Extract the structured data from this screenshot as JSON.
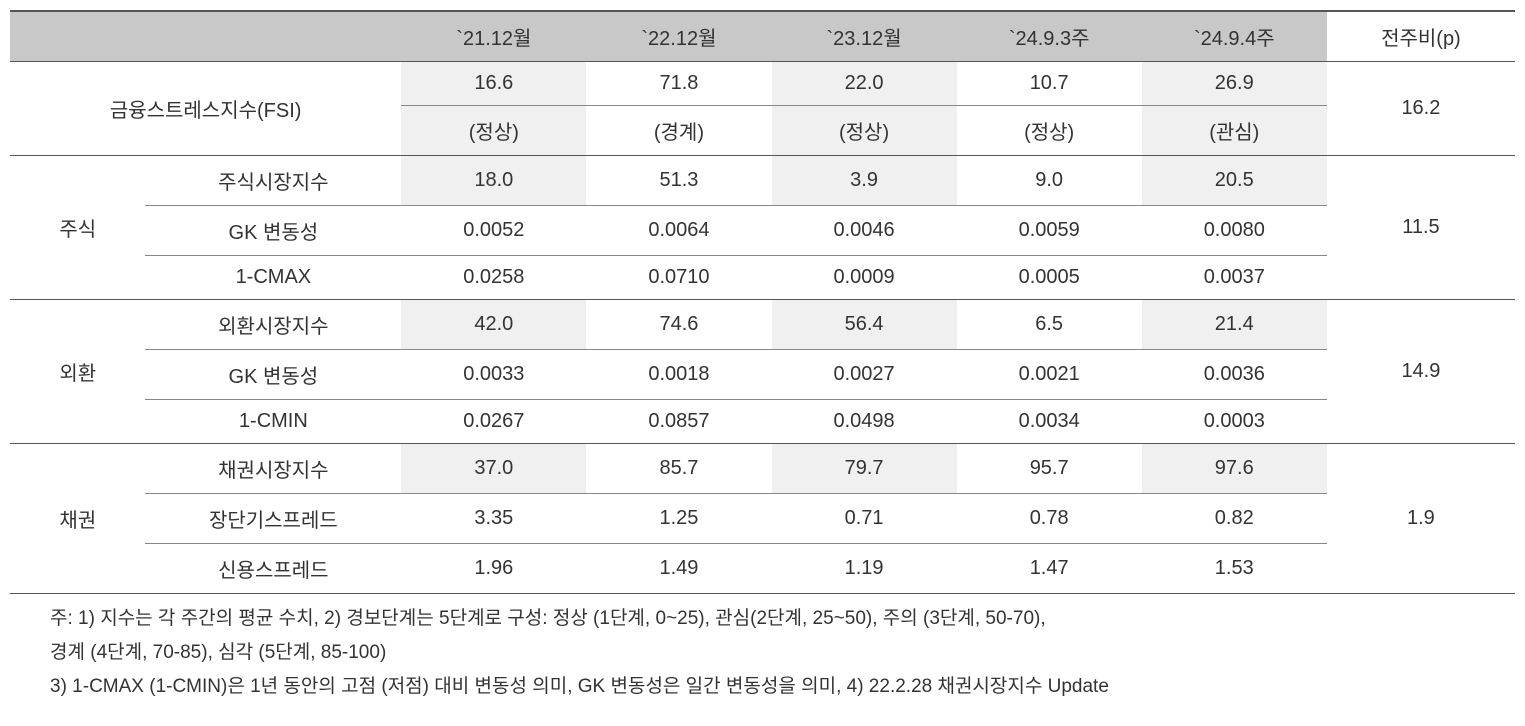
{
  "headers": {
    "blank": "",
    "c1": "`21.12월",
    "c2": "`22.12월",
    "c3": "`23.12월",
    "c4": "`24.9.3주",
    "c5": "`24.9.4주",
    "c6": "전주비(p)"
  },
  "fsi": {
    "label": "금융스트레스지수(FSI)",
    "v1": "16.6",
    "v2": "71.8",
    "v3": "22.0",
    "v4": "10.7",
    "v5": "26.9",
    "wow": "16.2",
    "s1": "(정상)",
    "s2": "(경계)",
    "s3": "(정상)",
    "s4": "(정상)",
    "s5": "(관심)"
  },
  "stock": {
    "label": "주식",
    "wow": "11.5",
    "r1": {
      "label": "주식시장지수",
      "v1": "18.0",
      "v2": "51.3",
      "v3": "3.9",
      "v4": "9.0",
      "v5": "20.5"
    },
    "r2": {
      "label": "GK 변동성",
      "v1": "0.0052",
      "v2": "0.0064",
      "v3": "0.0046",
      "v4": "0.0059",
      "v5": "0.0080"
    },
    "r3": {
      "label": "1-CMAX",
      "v1": "0.0258",
      "v2": "0.0710",
      "v3": "0.0009",
      "v4": "0.0005",
      "v5": "0.0037"
    }
  },
  "fx": {
    "label": "외환",
    "wow": "14.9",
    "r1": {
      "label": "외환시장지수",
      "v1": "42.0",
      "v2": "74.6",
      "v3": "56.4",
      "v4": "6.5",
      "v5": "21.4"
    },
    "r2": {
      "label": "GK 변동성",
      "v1": "0.0033",
      "v2": "0.0018",
      "v3": "0.0027",
      "v4": "0.0021",
      "v5": "0.0036"
    },
    "r3": {
      "label": "1-CMIN",
      "v1": "0.0267",
      "v2": "0.0857",
      "v3": "0.0498",
      "v4": "0.0034",
      "v5": "0.0003"
    }
  },
  "bond": {
    "label": "채권",
    "wow": "1.9",
    "r1": {
      "label": "채권시장지수",
      "v1": "37.0",
      "v2": "85.7",
      "v3": "79.7",
      "v4": "95.7",
      "v5": "97.6"
    },
    "r2": {
      "label": "장단기스프레드",
      "v1": "3.35",
      "v2": "1.25",
      "v3": "0.71",
      "v4": "0.78",
      "v5": "0.82"
    },
    "r3": {
      "label": "신용스프레드",
      "v1": "1.96",
      "v2": "1.49",
      "v3": "1.19",
      "v4": "1.47",
      "v5": "1.53"
    }
  },
  "footnotes": {
    "line1": "주: 1) 지수는 각 주간의 평균 수치, 2) 경보단계는 5단계로 구성: 정상 (1단계, 0~25), 관심(2단계, 25~50), 주의 (3단계, 50-70),",
    "line2": "경계 (4단계, 70-85), 심각 (5단계, 85-100)",
    "line3": "3) 1-CMAX (1-CMIN)은 1년 동안의 고점 (저점) 대비 변동성 의미, GK 변동성은 일간 변동성을 의미, 4) 22.2.28 채권시장지수 Update"
  },
  "colors": {
    "header_bg": "#c8c8c8",
    "shaded_bg": "#f0f0f0",
    "text": "#333333",
    "border": "#555555"
  }
}
